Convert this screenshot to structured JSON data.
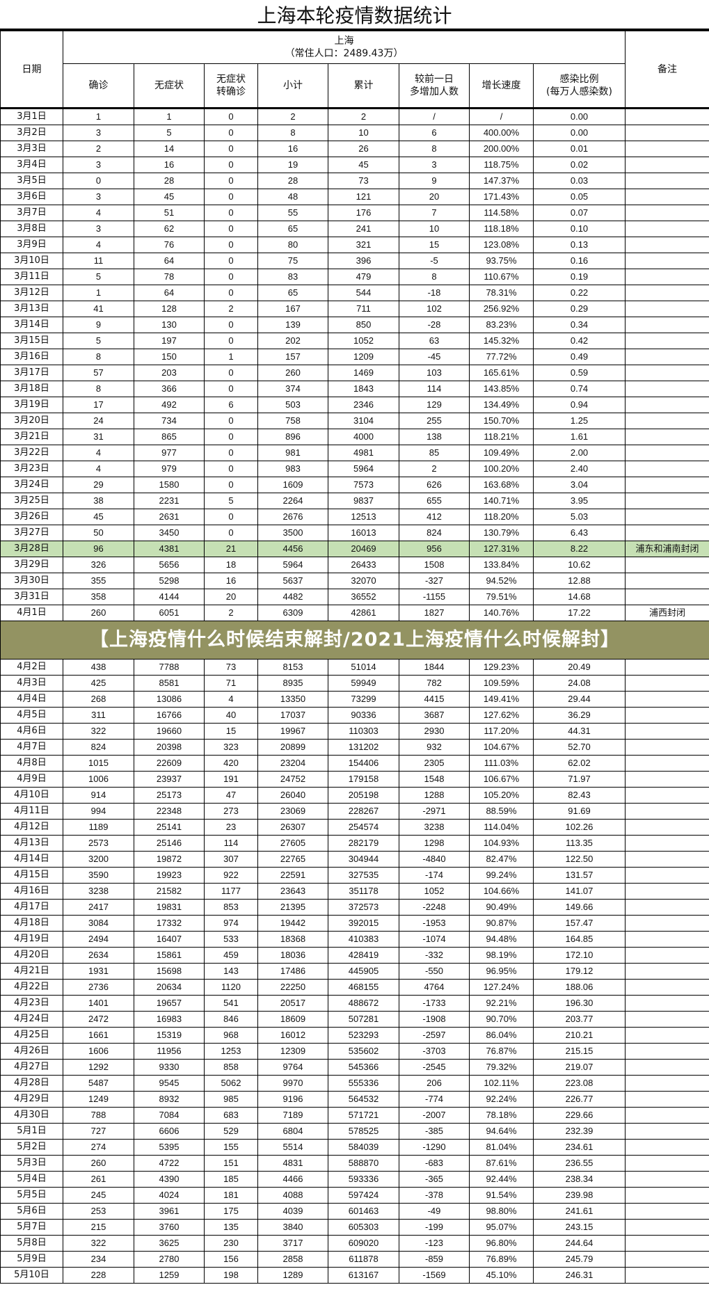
{
  "title": "上海本轮疫情数据统计",
  "header": {
    "date": "日期",
    "region": "上海",
    "population": "（常住人口：2489.43万）",
    "note": "备注",
    "columns": [
      "确诊",
      "无症状",
      "无症状\n转确诊",
      "小计",
      "累计",
      "较前一日\n多增加人数",
      "增长速度",
      "感染比例\n(每万人感染数)"
    ]
  },
  "highlight_color": "#c6e0b4",
  "rows": [
    [
      "3月1日",
      "1",
      "1",
      "0",
      "2",
      "2",
      "/",
      "/",
      "0.00",
      ""
    ],
    [
      "3月2日",
      "3",
      "5",
      "0",
      "8",
      "10",
      "6",
      "400.00%",
      "0.00",
      ""
    ],
    [
      "3月3日",
      "2",
      "14",
      "0",
      "16",
      "26",
      "8",
      "200.00%",
      "0.01",
      ""
    ],
    [
      "3月4日",
      "3",
      "16",
      "0",
      "19",
      "45",
      "3",
      "118.75%",
      "0.02",
      ""
    ],
    [
      "3月5日",
      "0",
      "28",
      "0",
      "28",
      "73",
      "9",
      "147.37%",
      "0.03",
      ""
    ],
    [
      "3月6日",
      "3",
      "45",
      "0",
      "48",
      "121",
      "20",
      "171.43%",
      "0.05",
      ""
    ],
    [
      "3月7日",
      "4",
      "51",
      "0",
      "55",
      "176",
      "7",
      "114.58%",
      "0.07",
      ""
    ],
    [
      "3月8日",
      "3",
      "62",
      "0",
      "65",
      "241",
      "10",
      "118.18%",
      "0.10",
      ""
    ],
    [
      "3月9日",
      "4",
      "76",
      "0",
      "80",
      "321",
      "15",
      "123.08%",
      "0.13",
      ""
    ],
    [
      "3月10日",
      "11",
      "64",
      "0",
      "75",
      "396",
      "-5",
      "93.75%",
      "0.16",
      ""
    ],
    [
      "3月11日",
      "5",
      "78",
      "0",
      "83",
      "479",
      "8",
      "110.67%",
      "0.19",
      ""
    ],
    [
      "3月12日",
      "1",
      "64",
      "0",
      "65",
      "544",
      "-18",
      "78.31%",
      "0.22",
      ""
    ],
    [
      "3月13日",
      "41",
      "128",
      "2",
      "167",
      "711",
      "102",
      "256.92%",
      "0.29",
      ""
    ],
    [
      "3月14日",
      "9",
      "130",
      "0",
      "139",
      "850",
      "-28",
      "83.23%",
      "0.34",
      ""
    ],
    [
      "3月15日",
      "5",
      "197",
      "0",
      "202",
      "1052",
      "63",
      "145.32%",
      "0.42",
      ""
    ],
    [
      "3月16日",
      "8",
      "150",
      "1",
      "157",
      "1209",
      "-45",
      "77.72%",
      "0.49",
      ""
    ],
    [
      "3月17日",
      "57",
      "203",
      "0",
      "260",
      "1469",
      "103",
      "165.61%",
      "0.59",
      ""
    ],
    [
      "3月18日",
      "8",
      "366",
      "0",
      "374",
      "1843",
      "114",
      "143.85%",
      "0.74",
      ""
    ],
    [
      "3月19日",
      "17",
      "492",
      "6",
      "503",
      "2346",
      "129",
      "134.49%",
      "0.94",
      ""
    ],
    [
      "3月20日",
      "24",
      "734",
      "0",
      "758",
      "3104",
      "255",
      "150.70%",
      "1.25",
      ""
    ],
    [
      "3月21日",
      "31",
      "865",
      "0",
      "896",
      "4000",
      "138",
      "118.21%",
      "1.61",
      ""
    ],
    [
      "3月22日",
      "4",
      "977",
      "0",
      "981",
      "4981",
      "85",
      "109.49%",
      "2.00",
      ""
    ],
    [
      "3月23日",
      "4",
      "979",
      "0",
      "983",
      "5964",
      "2",
      "100.20%",
      "2.40",
      ""
    ],
    [
      "3月24日",
      "29",
      "1580",
      "0",
      "1609",
      "7573",
      "626",
      "163.68%",
      "3.04",
      ""
    ],
    [
      "3月25日",
      "38",
      "2231",
      "5",
      "2264",
      "9837",
      "655",
      "140.71%",
      "3.95",
      ""
    ],
    [
      "3月26日",
      "45",
      "2631",
      "0",
      "2676",
      "12513",
      "412",
      "118.20%",
      "5.03",
      ""
    ],
    [
      "3月27日",
      "50",
      "3450",
      "0",
      "3500",
      "16013",
      "824",
      "130.79%",
      "6.43",
      ""
    ],
    [
      "3月28日",
      "96",
      "4381",
      "21",
      "4456",
      "20469",
      "956",
      "127.31%",
      "8.22",
      "浦东和浦南封闭"
    ],
    [
      "3月29日",
      "326",
      "5656",
      "18",
      "5964",
      "26433",
      "1508",
      "133.84%",
      "10.62",
      ""
    ],
    [
      "3月30日",
      "355",
      "5298",
      "16",
      "5637",
      "32070",
      "-327",
      "94.52%",
      "12.88",
      ""
    ],
    [
      "3月31日",
      "358",
      "4144",
      "20",
      "4482",
      "36552",
      "-1155",
      "79.51%",
      "14.68",
      ""
    ],
    [
      "4月1日",
      "260",
      "6051",
      "2",
      "6309",
      "42861",
      "1827",
      "140.76%",
      "17.22",
      "浦西封闭"
    ],
    [
      "4月2日",
      "438",
      "7788",
      "73",
      "8153",
      "51014",
      "1844",
      "129.23%",
      "20.49",
      ""
    ],
    [
      "4月3日",
      "425",
      "8581",
      "71",
      "8935",
      "59949",
      "782",
      "109.59%",
      "24.08",
      ""
    ],
    [
      "4月4日",
      "268",
      "13086",
      "4",
      "13350",
      "73299",
      "4415",
      "149.41%",
      "29.44",
      ""
    ],
    [
      "4月5日",
      "311",
      "16766",
      "40",
      "17037",
      "90336",
      "3687",
      "127.62%",
      "36.29",
      ""
    ],
    [
      "4月6日",
      "322",
      "19660",
      "15",
      "19967",
      "110303",
      "2930",
      "117.20%",
      "44.31",
      ""
    ],
    [
      "4月7日",
      "824",
      "20398",
      "323",
      "20899",
      "131202",
      "932",
      "104.67%",
      "52.70",
      ""
    ],
    [
      "4月8日",
      "1015",
      "22609",
      "420",
      "23204",
      "154406",
      "2305",
      "111.03%",
      "62.02",
      ""
    ],
    [
      "4月9日",
      "1006",
      "23937",
      "191",
      "24752",
      "179158",
      "1548",
      "106.67%",
      "71.97",
      ""
    ],
    [
      "4月10日",
      "914",
      "25173",
      "47",
      "26040",
      "205198",
      "1288",
      "105.20%",
      "82.43",
      ""
    ],
    [
      "4月11日",
      "994",
      "22348",
      "273",
      "23069",
      "228267",
      "-2971",
      "88.59%",
      "91.69",
      ""
    ],
    [
      "4月12日",
      "1189",
      "25141",
      "23",
      "26307",
      "254574",
      "3238",
      "114.04%",
      "102.26",
      ""
    ],
    [
      "4月13日",
      "2573",
      "25146",
      "114",
      "27605",
      "282179",
      "1298",
      "104.93%",
      "113.35",
      ""
    ],
    [
      "4月14日",
      "3200",
      "19872",
      "307",
      "22765",
      "304944",
      "-4840",
      "82.47%",
      "122.50",
      ""
    ],
    [
      "4月15日",
      "3590",
      "19923",
      "922",
      "22591",
      "327535",
      "-174",
      "99.24%",
      "131.57",
      ""
    ],
    [
      "4月16日",
      "3238",
      "21582",
      "1177",
      "23643",
      "351178",
      "1052",
      "104.66%",
      "141.07",
      ""
    ],
    [
      "4月17日",
      "2417",
      "19831",
      "853",
      "21395",
      "372573",
      "-2248",
      "90.49%",
      "149.66",
      ""
    ],
    [
      "4月18日",
      "3084",
      "17332",
      "974",
      "19442",
      "392015",
      "-1953",
      "90.87%",
      "157.47",
      ""
    ],
    [
      "4月19日",
      "2494",
      "16407",
      "533",
      "18368",
      "410383",
      "-1074",
      "94.48%",
      "164.85",
      ""
    ],
    [
      "4月20日",
      "2634",
      "15861",
      "459",
      "18036",
      "428419",
      "-332",
      "98.19%",
      "172.10",
      ""
    ],
    [
      "4月21日",
      "1931",
      "15698",
      "143",
      "17486",
      "445905",
      "-550",
      "96.95%",
      "179.12",
      ""
    ],
    [
      "4月22日",
      "2736",
      "20634",
      "1120",
      "22250",
      "468155",
      "4764",
      "127.24%",
      "188.06",
      ""
    ],
    [
      "4月23日",
      "1401",
      "19657",
      "541",
      "20517",
      "488672",
      "-1733",
      "92.21%",
      "196.30",
      ""
    ],
    [
      "4月24日",
      "2472",
      "16983",
      "846",
      "18609",
      "507281",
      "-1908",
      "90.70%",
      "203.77",
      ""
    ],
    [
      "4月25日",
      "1661",
      "15319",
      "968",
      "16012",
      "523293",
      "-2597",
      "86.04%",
      "210.21",
      ""
    ],
    [
      "4月26日",
      "1606",
      "11956",
      "1253",
      "12309",
      "535602",
      "-3703",
      "76.87%",
      "215.15",
      ""
    ],
    [
      "4月27日",
      "1292",
      "9330",
      "858",
      "9764",
      "545366",
      "-2545",
      "79.32%",
      "219.07",
      ""
    ],
    [
      "4月28日",
      "5487",
      "9545",
      "5062",
      "9970",
      "555336",
      "206",
      "102.11%",
      "223.08",
      ""
    ],
    [
      "4月29日",
      "1249",
      "8932",
      "985",
      "9196",
      "564532",
      "-774",
      "92.24%",
      "226.77",
      ""
    ],
    [
      "4月30日",
      "788",
      "7084",
      "683",
      "7189",
      "571721",
      "-2007",
      "78.18%",
      "229.66",
      ""
    ],
    [
      "5月1日",
      "727",
      "6606",
      "529",
      "6804",
      "578525",
      "-385",
      "94.64%",
      "232.39",
      ""
    ],
    [
      "5月2日",
      "274",
      "5395",
      "155",
      "5514",
      "584039",
      "-1290",
      "81.04%",
      "234.61",
      ""
    ],
    [
      "5月3日",
      "260",
      "4722",
      "151",
      "4831",
      "588870",
      "-683",
      "87.61%",
      "236.55",
      ""
    ],
    [
      "5月4日",
      "261",
      "4390",
      "185",
      "4466",
      "593336",
      "-365",
      "92.44%",
      "238.34",
      ""
    ],
    [
      "5月5日",
      "245",
      "4024",
      "181",
      "4088",
      "597424",
      "-378",
      "91.54%",
      "239.98",
      ""
    ],
    [
      "5月6日",
      "253",
      "3961",
      "175",
      "4039",
      "601463",
      "-49",
      "98.80%",
      "241.61",
      ""
    ],
    [
      "5月7日",
      "215",
      "3760",
      "135",
      "3840",
      "605303",
      "-199",
      "95.07%",
      "243.15",
      ""
    ],
    [
      "5月8日",
      "322",
      "3625",
      "230",
      "3717",
      "609020",
      "-123",
      "96.80%",
      "244.64",
      ""
    ],
    [
      "5月9日",
      "234",
      "2780",
      "156",
      "2858",
      "611878",
      "-859",
      "76.89%",
      "245.79",
      ""
    ],
    [
      "5月10日",
      "228",
      "1259",
      "198",
      "1289",
      "613167",
      "-1569",
      "45.10%",
      "246.31",
      ""
    ]
  ],
  "highlighted_row": "3月28日",
  "watermark": "【上海疫情什么时候结束解封/2021上海疫情什么时候解封】"
}
